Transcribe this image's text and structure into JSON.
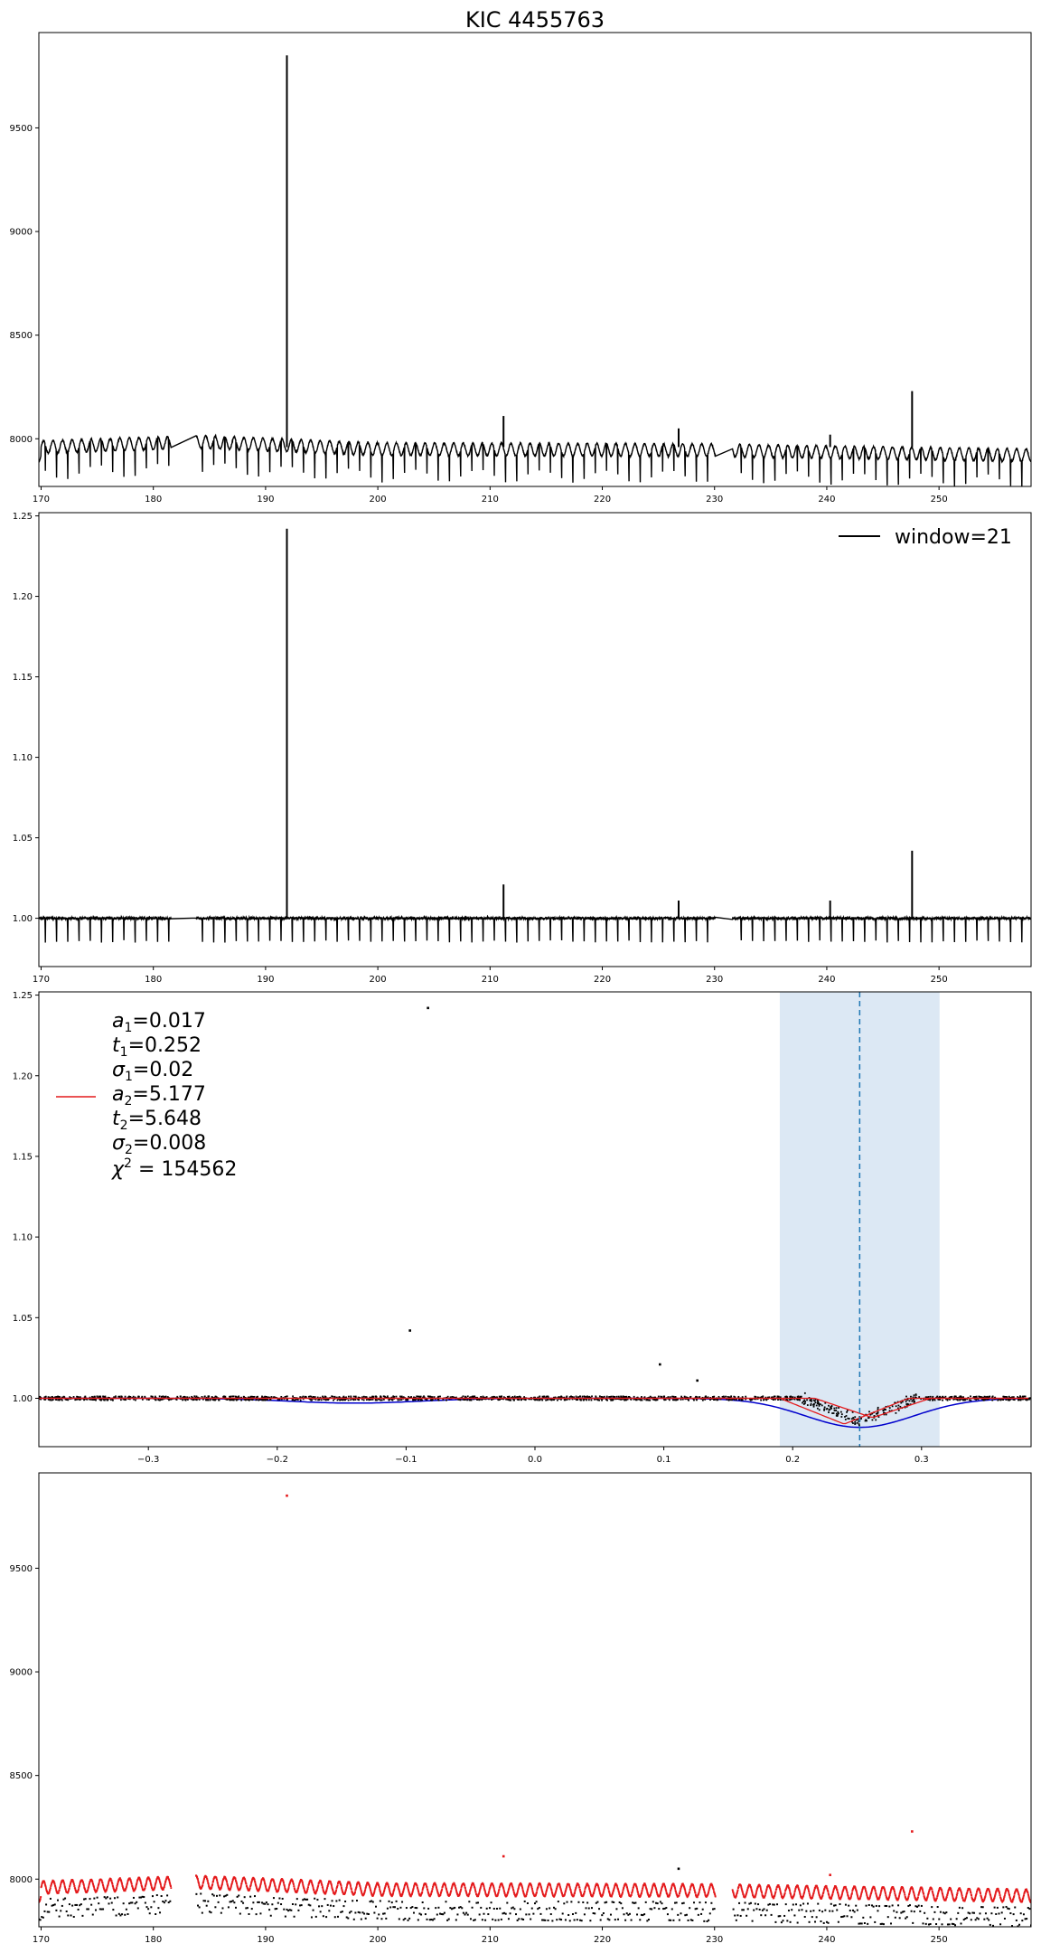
{
  "figure": {
    "title": "KIC 4455763"
  },
  "colors": {
    "raw": "#000000",
    "model_red": "#e41a1c",
    "model_blue": "#0000cc",
    "span": "#dce8f4",
    "vline": "#1f77b4",
    "frame": "#000000"
  },
  "chart_data": [
    {
      "type": "line",
      "panel": "raw-light-curve",
      "title": "KIC 4455763",
      "xlim": [
        169.8,
        258.2
      ],
      "ylim": [
        7770,
        9960
      ],
      "xticks": [
        170,
        180,
        190,
        200,
        210,
        220,
        230,
        240,
        250
      ],
      "yticks": [
        8000,
        8500,
        9000,
        9500
      ],
      "baseline": 7960,
      "oscillation_amplitude": 30,
      "oscillation_period": 0.85,
      "eclipse_depth": 160,
      "eclipse_period": 1.0,
      "gaps": [
        [
          181.6,
          183.8
        ],
        [
          230.1,
          231.6
        ]
      ],
      "trend": [
        [
          170,
          7960
        ],
        [
          184,
          7985
        ],
        [
          200,
          7950
        ],
        [
          230,
          7945
        ],
        [
          235,
          7940
        ],
        [
          258,
          7920
        ]
      ],
      "spikes": [
        {
          "x": 191.9,
          "y": 9850
        },
        {
          "x": 211.2,
          "y": 8110
        },
        {
          "x": 226.8,
          "y": 8050
        },
        {
          "x": 240.3,
          "y": 8020
        },
        {
          "x": 247.6,
          "y": 8230
        }
      ]
    },
    {
      "type": "line",
      "panel": "detrended-light-curve",
      "legend": {
        "label": "window=21",
        "placement": "top-right"
      },
      "xlim": [
        169.8,
        258.2
      ],
      "ylim": [
        0.97,
        1.252
      ],
      "xticks": [
        170,
        180,
        190,
        200,
        210,
        220,
        230,
        240,
        250
      ],
      "yticks": [
        1.0,
        1.05,
        1.1,
        1.15,
        1.2,
        1.25
      ],
      "yticklabels": [
        "1.00",
        "1.05",
        "1.10",
        "1.15",
        "1.20",
        "1.25"
      ],
      "baseline": 1.0,
      "eclipse_depth": 0.018,
      "eclipse_period": 1.0,
      "gaps": [
        [
          181.6,
          183.8
        ],
        [
          230.1,
          231.6
        ]
      ],
      "spikes": [
        {
          "x": 191.9,
          "y": 1.242
        },
        {
          "x": 211.2,
          "y": 1.021
        },
        {
          "x": 226.8,
          "y": 1.011
        },
        {
          "x": 240.3,
          "y": 1.011
        },
        {
          "x": 247.6,
          "y": 1.042
        }
      ]
    },
    {
      "type": "scatter",
      "panel": "phase-folded-fit",
      "xlim": [
        -0.385,
        0.385
      ],
      "ylim": [
        0.97,
        1.252
      ],
      "xticks": [
        -0.3,
        -0.2,
        -0.1,
        0.0,
        0.1,
        0.2,
        0.3
      ],
      "xticklabels": [
        "−0.3",
        "−0.2",
        "−0.1",
        "0.0",
        "0.1",
        "0.2",
        "0.3"
      ],
      "yticks": [
        1.0,
        1.05,
        1.1,
        1.15,
        1.2,
        1.25
      ],
      "yticklabels": [
        "1.00",
        "1.05",
        "1.10",
        "1.15",
        "1.20",
        "1.25"
      ],
      "shaded_span": [
        0.19,
        0.314
      ],
      "vline": 0.252,
      "fit": {
        "a1": 0.017,
        "t1": 0.252,
        "sigma1": 0.02,
        "a2": 5.177,
        "t2": 5.648,
        "sigma2": 0.008,
        "chi2": 154562
      },
      "blue_curve": {
        "dips": [
          {
            "center": -0.14,
            "depth": 0.003,
            "width": 0.05
          },
          {
            "center": 0.252,
            "depth": 0.018,
            "width": 0.042
          }
        ]
      },
      "outliers": [
        {
          "x": -0.083,
          "y": 1.242
        },
        {
          "x": -0.097,
          "y": 1.042
        },
        {
          "x": 0.097,
          "y": 1.021
        },
        {
          "x": 0.126,
          "y": 1.011
        }
      ],
      "legend_lines": [
        {
          "var": "a",
          "sub": "1",
          "value": "0.017"
        },
        {
          "var": "t",
          "sub": "1",
          "value": "0.252"
        },
        {
          "var": "σ",
          "sub": "1",
          "value": "0.02"
        },
        {
          "var": "a",
          "sub": "2",
          "value": "5.177"
        },
        {
          "var": "t",
          "sub": "2",
          "value": "5.648"
        },
        {
          "var": "σ",
          "sub": "2",
          "value": "0.008"
        }
      ],
      "chi_label": {
        "var": "χ",
        "sup": "2",
        "value": " = 154562"
      }
    },
    {
      "type": "scatter",
      "panel": "raw-vs-model",
      "xlim": [
        169.8,
        258.2
      ],
      "ylim": [
        7770,
        9960
      ],
      "xticks": [
        170,
        180,
        190,
        200,
        210,
        220,
        230,
        240,
        250
      ],
      "yticks": [
        8000,
        8500,
        9000,
        9500
      ],
      "gaps": [
        [
          181.6,
          183.8
        ],
        [
          230.1,
          231.6
        ]
      ],
      "red_spikes": [
        {
          "x": 191.9,
          "y": 9850
        },
        {
          "x": 211.2,
          "y": 8110
        },
        {
          "x": 240.3,
          "y": 8020
        },
        {
          "x": 247.6,
          "y": 8230
        }
      ],
      "black_spikes": [
        {
          "x": 226.8,
          "y": 8050
        }
      ]
    }
  ]
}
